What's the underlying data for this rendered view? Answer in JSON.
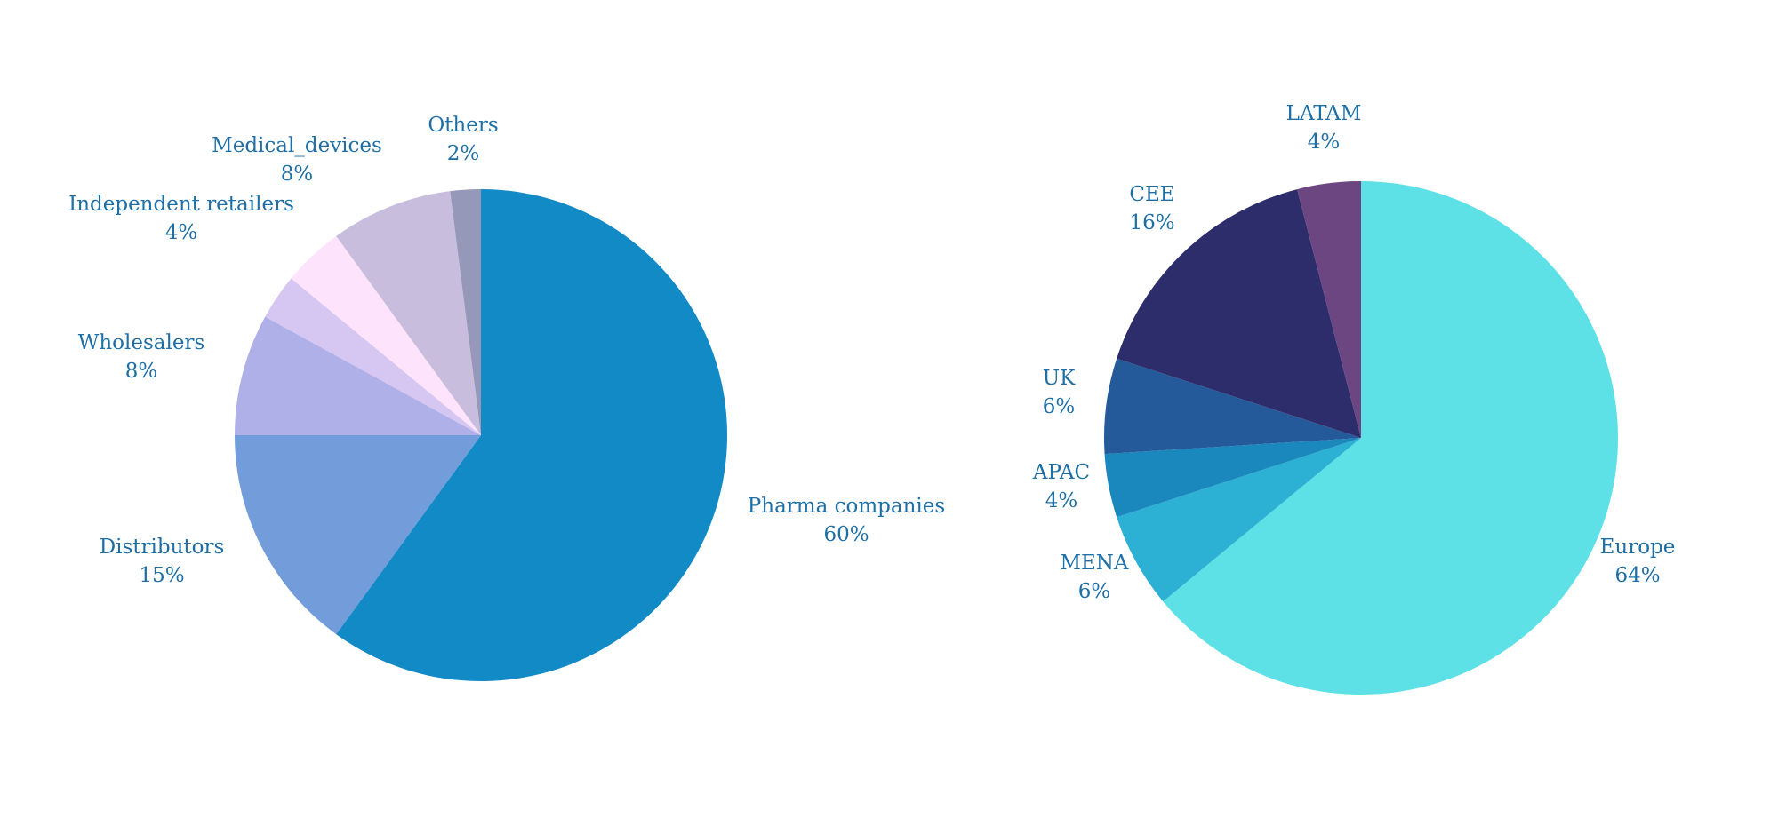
{
  "label_color": "#1d6fa5",
  "chart_data": [
    {
      "type": "pie",
      "title": "",
      "series": [
        {
          "values": [
            60,
            15,
            8,
            3,
            4,
            8,
            2
          ],
          "categories": [
            "Pharma companies",
            "Distributors",
            "Wholesalers",
            "",
            "Independent retailers",
            "Medical_devices",
            "Others"
          ],
          "labels": [
            "60%",
            "15%",
            "8%",
            "",
            "4%",
            "8%",
            "2%"
          ],
          "colors": [
            "#118ac6",
            "#739dda",
            "#b0b0e9",
            "#d6c6f2",
            "#fde3fb",
            "#c8bddd",
            "#9698b9"
          ]
        }
      ]
    },
    {
      "type": "pie",
      "title": "",
      "series": [
        {
          "values": [
            64,
            6,
            4,
            6,
            16,
            4
          ],
          "categories": [
            "Europe",
            "MENA",
            "APAC",
            "UK",
            "CEE",
            "LATAM"
          ],
          "labels": [
            "64%",
            "6%",
            "4%",
            "6%",
            "16%",
            "4%"
          ],
          "colors": [
            "#5de1e6",
            "#2cb1d4",
            "#1a87bd",
            "#255a9a",
            "#2e2d6c",
            "#6c4680"
          ]
        }
      ]
    }
  ]
}
